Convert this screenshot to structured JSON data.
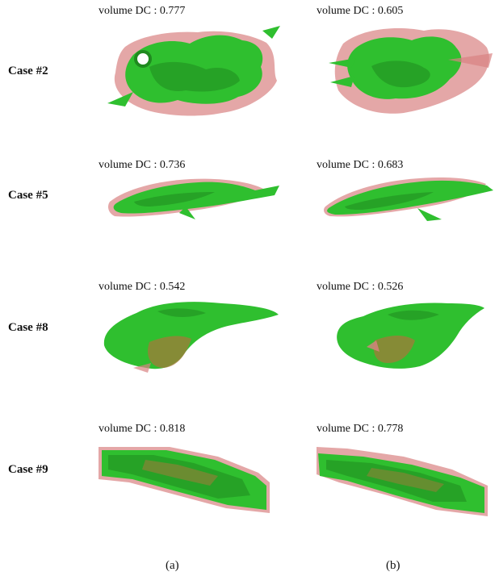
{
  "dc_prefix": "volume DC : ",
  "rows": [
    {
      "case": "Case #2",
      "a_dc": "0.777",
      "b_dc": "0.605"
    },
    {
      "case": "Case #5",
      "a_dc": "0.736",
      "b_dc": "0.683"
    },
    {
      "case": "Case #8",
      "a_dc": "0.542",
      "b_dc": "0.526"
    },
    {
      "case": "Case #9",
      "a_dc": "0.818",
      "b_dc": "0.778"
    }
  ],
  "columns": [
    "(a)",
    "(b)"
  ],
  "colors": {
    "green": "#2fbf2f",
    "green_dark": "#1f8a1f",
    "red_overlay": "#d98282"
  }
}
